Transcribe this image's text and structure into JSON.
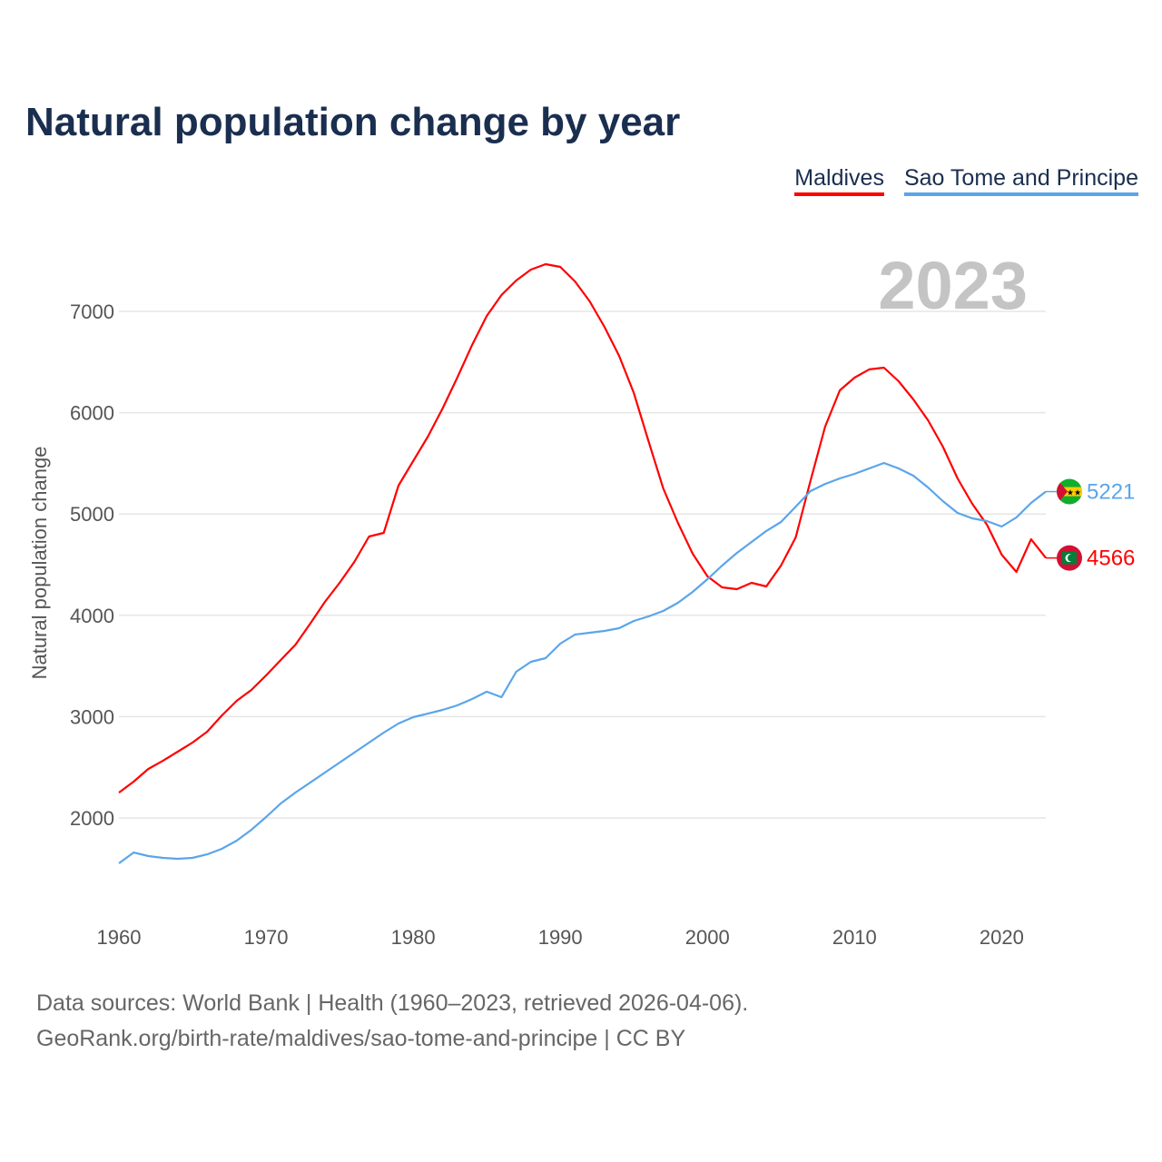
{
  "title": "Natural population change by year",
  "legend": [
    {
      "label": "Maldives",
      "color": "#ff0000"
    },
    {
      "label": "Sao Tome and Principe",
      "color": "#5aa5ea"
    }
  ],
  "year_label": "2023",
  "footer": {
    "line1": "Data sources: World Bank | Health (1960–2023, retrieved 2026-04-06).",
    "line2": "GeoRank.org/birth-rate/maldives/sao-tome-and-principe | CC BY"
  },
  "chart_data": {
    "type": "line",
    "title": "Natural population change by year",
    "xlabel": "",
    "ylabel": "Natural population change",
    "xlim": [
      1960,
      2023
    ],
    "ylim": [
      1300,
      7600
    ],
    "x_ticks": [
      1960,
      1970,
      1980,
      1990,
      2000,
      2010,
      2020
    ],
    "y_ticks": [
      2000,
      3000,
      4000,
      5000,
      6000,
      7000
    ],
    "grid": true,
    "legend_position": "top-right",
    "x": [
      1960,
      1961,
      1962,
      1963,
      1964,
      1965,
      1966,
      1967,
      1968,
      1969,
      1970,
      1971,
      1972,
      1973,
      1974,
      1975,
      1976,
      1977,
      1978,
      1979,
      1980,
      1981,
      1982,
      1983,
      1984,
      1985,
      1986,
      1987,
      1988,
      1989,
      1990,
      1991,
      1992,
      1993,
      1994,
      1995,
      1996,
      1997,
      1998,
      1999,
      2000,
      2001,
      2002,
      2003,
      2004,
      2005,
      2006,
      2007,
      2008,
      2009,
      2010,
      2011,
      2012,
      2013,
      2014,
      2015,
      2016,
      2017,
      2018,
      2019,
      2020,
      2021,
      2022,
      2023
    ],
    "series": [
      {
        "name": "Maldives",
        "color": "#ff0000",
        "end_label": "4566",
        "flag": "maldives",
        "values": [
          2250,
          2358,
          2484,
          2565,
          2654,
          2744,
          2851,
          3012,
          3156,
          3263,
          3407,
          3559,
          3711,
          3918,
          4133,
          4321,
          4527,
          4778,
          4814,
          5280,
          5522,
          5763,
          6041,
          6346,
          6668,
          6955,
          7161,
          7305,
          7412,
          7466,
          7439,
          7296,
          7099,
          6848,
          6561,
          6194,
          5719,
          5253,
          4912,
          4608,
          4384,
          4276,
          4258,
          4321,
          4285,
          4491,
          4769,
          5324,
          5862,
          6220,
          6346,
          6427,
          6444,
          6310,
          6131,
          5925,
          5665,
          5351,
          5100,
          4894,
          4599,
          4428,
          4751,
          4566
        ]
      },
      {
        "name": "Sao Tome and Principe",
        "color": "#5aa5ea",
        "end_label": "5221",
        "flag": "sao-tome",
        "values": [
          1552,
          1659,
          1624,
          1606,
          1597,
          1606,
          1641,
          1695,
          1776,
          1883,
          2009,
          2143,
          2251,
          2349,
          2448,
          2547,
          2645,
          2744,
          2842,
          2932,
          2995,
          3030,
          3066,
          3111,
          3174,
          3246,
          3192,
          3443,
          3541,
          3577,
          3720,
          3810,
          3828,
          3846,
          3873,
          3944,
          3989,
          4043,
          4124,
          4231,
          4357,
          4491,
          4616,
          4724,
          4832,
          4921,
          5073,
          5226,
          5297,
          5351,
          5396,
          5450,
          5504,
          5450,
          5378,
          5262,
          5127,
          5011,
          4957,
          4930,
          4876,
          4966,
          5109,
          5221
        ]
      }
    ]
  }
}
